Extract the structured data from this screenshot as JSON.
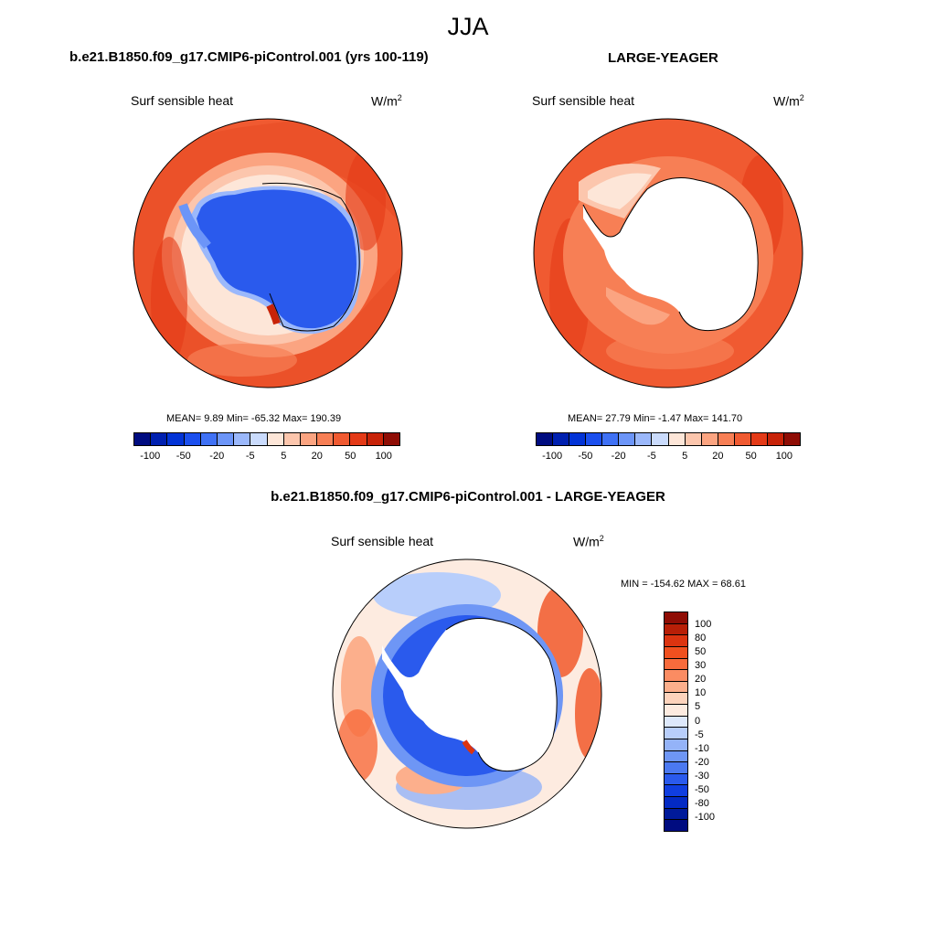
{
  "page": {
    "title": "JJA"
  },
  "panels": [
    {
      "id": "model",
      "title": "b.e21.B1850.f09_g17.CMIP6-piControl.001 (yrs 100-119)",
      "variable": "Surf sensible heat",
      "units": "W/m",
      "units_exp": "2",
      "stats_text": "MEAN=   9.89  Min= -65.32  Max= 190.39"
    },
    {
      "id": "obs",
      "title": "LARGE-YEAGER",
      "variable": "Surf sensible heat",
      "units": "W/m",
      "units_exp": "2",
      "stats_text": "MEAN=  27.79  Min=  -1.47  Max= 141.70"
    },
    {
      "id": "diff",
      "title": "b.e21.B1850.f09_g17.CMIP6-piControl.001 - LARGE-YEAGER",
      "variable": "Surf sensible heat",
      "units": "W/m",
      "units_exp": "2",
      "stats_text": "MIN = -154.62 MAX =  68.61"
    }
  ],
  "colorbar_main": {
    "colors": [
      "#000c80",
      "#0020b0",
      "#0233d6",
      "#1b4fee",
      "#3f71f5",
      "#6c95f8",
      "#9bb8fb",
      "#cadbfc",
      "#fde6d8",
      "#fcc6ad",
      "#fba481",
      "#f77f55",
      "#f05a31",
      "#e43a17",
      "#c82308",
      "#8f0d05"
    ],
    "tick_labels": [
      "-100",
      "-50",
      "-20",
      "-5",
      "5",
      "20",
      "50",
      "100"
    ]
  },
  "colorbar_diff": {
    "colors_top_to_bottom": [
      "#8f0d05",
      "#b81f07",
      "#dc3410",
      "#f0501f",
      "#f86b3c",
      "#fb8c62",
      "#fcaf8c",
      "#fdd3bc",
      "#fdebe0",
      "#dde8fb",
      "#b8cefb",
      "#94b3f8",
      "#6e96f5",
      "#4b79f1",
      "#2a5aed",
      "#103ee0",
      "#032ac4",
      "#001a9a",
      "#000c80"
    ],
    "tick_labels": [
      "100",
      "80",
      "50",
      "30",
      "20",
      "10",
      "5",
      "0",
      "-5",
      "-10",
      "-20",
      "-30",
      "-50",
      "-80",
      "-100"
    ]
  }
}
